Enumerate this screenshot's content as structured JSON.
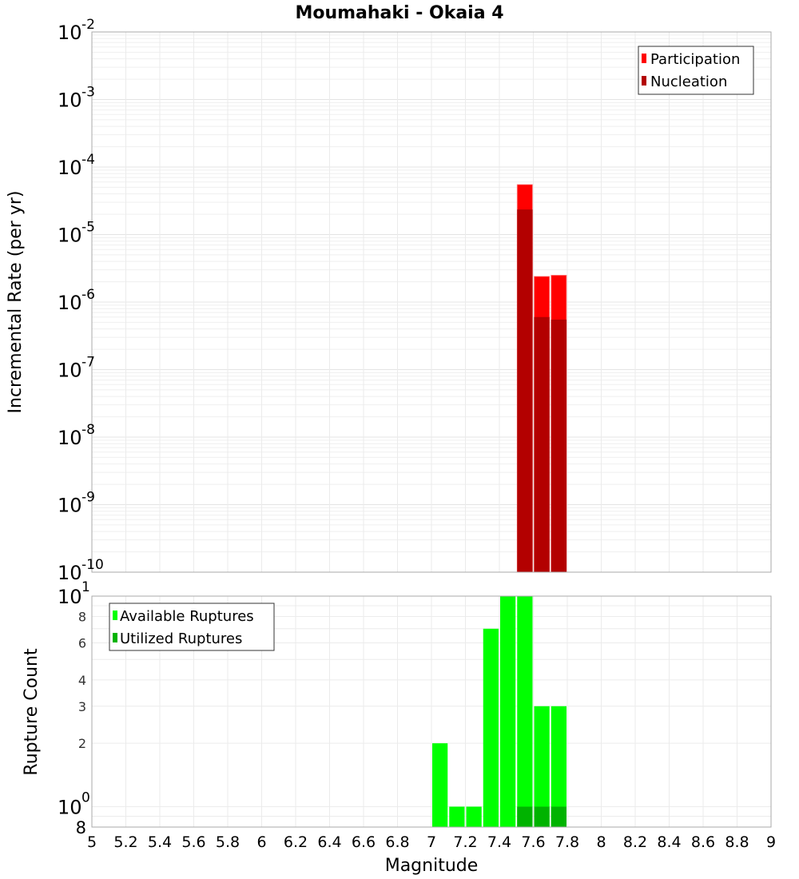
{
  "chart_data": [
    {
      "type": "bar",
      "title": "Moumahaki - Okaia 4",
      "xlabel": "Magnitude",
      "ylabel": "Incremental Rate (per yr)",
      "yscale": "log",
      "ylim": [
        1e-10,
        0.01
      ],
      "xlim": [
        5,
        9
      ],
      "grid": true,
      "legend_position": "top-right",
      "bin_width": 0.1,
      "x": [
        7.55,
        7.65,
        7.75
      ],
      "series": [
        {
          "name": "Participation",
          "color": "#ff0000",
          "values": [
            5.5e-05,
            2.4e-06,
            2.5e-06
          ]
        },
        {
          "name": "Nucleation",
          "color": "#b30000",
          "values": [
            2.35e-05,
            6e-07,
            5.5e-07
          ]
        }
      ],
      "ytick_exponents": [
        -2,
        -3,
        -4,
        -5,
        -6,
        -7,
        -8,
        -9,
        -10
      ]
    },
    {
      "type": "bar",
      "title": "",
      "xlabel": "Magnitude",
      "ylabel": "Rupture Count",
      "yscale": "log",
      "ylim": [
        0.8,
        10
      ],
      "xlim": [
        5,
        9
      ],
      "grid": true,
      "legend_position": "top-left",
      "bin_width": 0.1,
      "x": [
        7.05,
        7.15,
        7.25,
        7.35,
        7.45,
        7.55,
        7.65,
        7.75
      ],
      "series": [
        {
          "name": "Available Ruptures",
          "color": "#00ff00",
          "values": [
            2,
            1,
            1,
            7,
            10,
            10,
            3,
            3
          ]
        },
        {
          "name": "Utilized Ruptures",
          "color": "#00b300",
          "values": [
            0,
            0,
            0,
            0,
            0,
            1,
            1,
            1
          ]
        }
      ],
      "ytick_labels": [
        "10^1",
        "8",
        "6",
        "4",
        "3",
        "2",
        "10^0",
        "8"
      ]
    }
  ],
  "title": "Moumahaki - Okaia 4",
  "top": {
    "ylabel": "Incremental Rate (per yr)",
    "ticks": [
      {
        "base": "10",
        "exp": "-2"
      },
      {
        "base": "10",
        "exp": "-3"
      },
      {
        "base": "10",
        "exp": "-4"
      },
      {
        "base": "10",
        "exp": "-5"
      },
      {
        "base": "10",
        "exp": "-6"
      },
      {
        "base": "10",
        "exp": "-7"
      },
      {
        "base": "10",
        "exp": "-8"
      },
      {
        "base": "10",
        "exp": "-9"
      },
      {
        "base": "10",
        "exp": "-10"
      }
    ],
    "legend": [
      {
        "label": "Participation",
        "color": "#ff0000"
      },
      {
        "label": "Nucleation",
        "color": "#b30000"
      }
    ]
  },
  "bottom": {
    "ylabel": "Rupture Count",
    "ticks_major": [
      {
        "base": "10",
        "exp": "1"
      },
      {
        "base": "10",
        "exp": "0"
      }
    ],
    "ticks_minor": [
      "8",
      "6",
      "4",
      "3",
      "2"
    ],
    "tick_bottom": "8",
    "legend": [
      {
        "label": "Available Ruptures",
        "color": "#00ff00"
      },
      {
        "label": "Utilized Ruptures",
        "color": "#00b300"
      }
    ]
  },
  "xaxis": {
    "label": "Magnitude",
    "ticks": [
      "5",
      "5.2",
      "5.4",
      "5.6",
      "5.8",
      "6",
      "6.2",
      "6.4",
      "6.6",
      "6.8",
      "7",
      "7.2",
      "7.4",
      "7.6",
      "7.8",
      "8",
      "8.2",
      "8.4",
      "8.6",
      "8.8",
      "9"
    ]
  }
}
